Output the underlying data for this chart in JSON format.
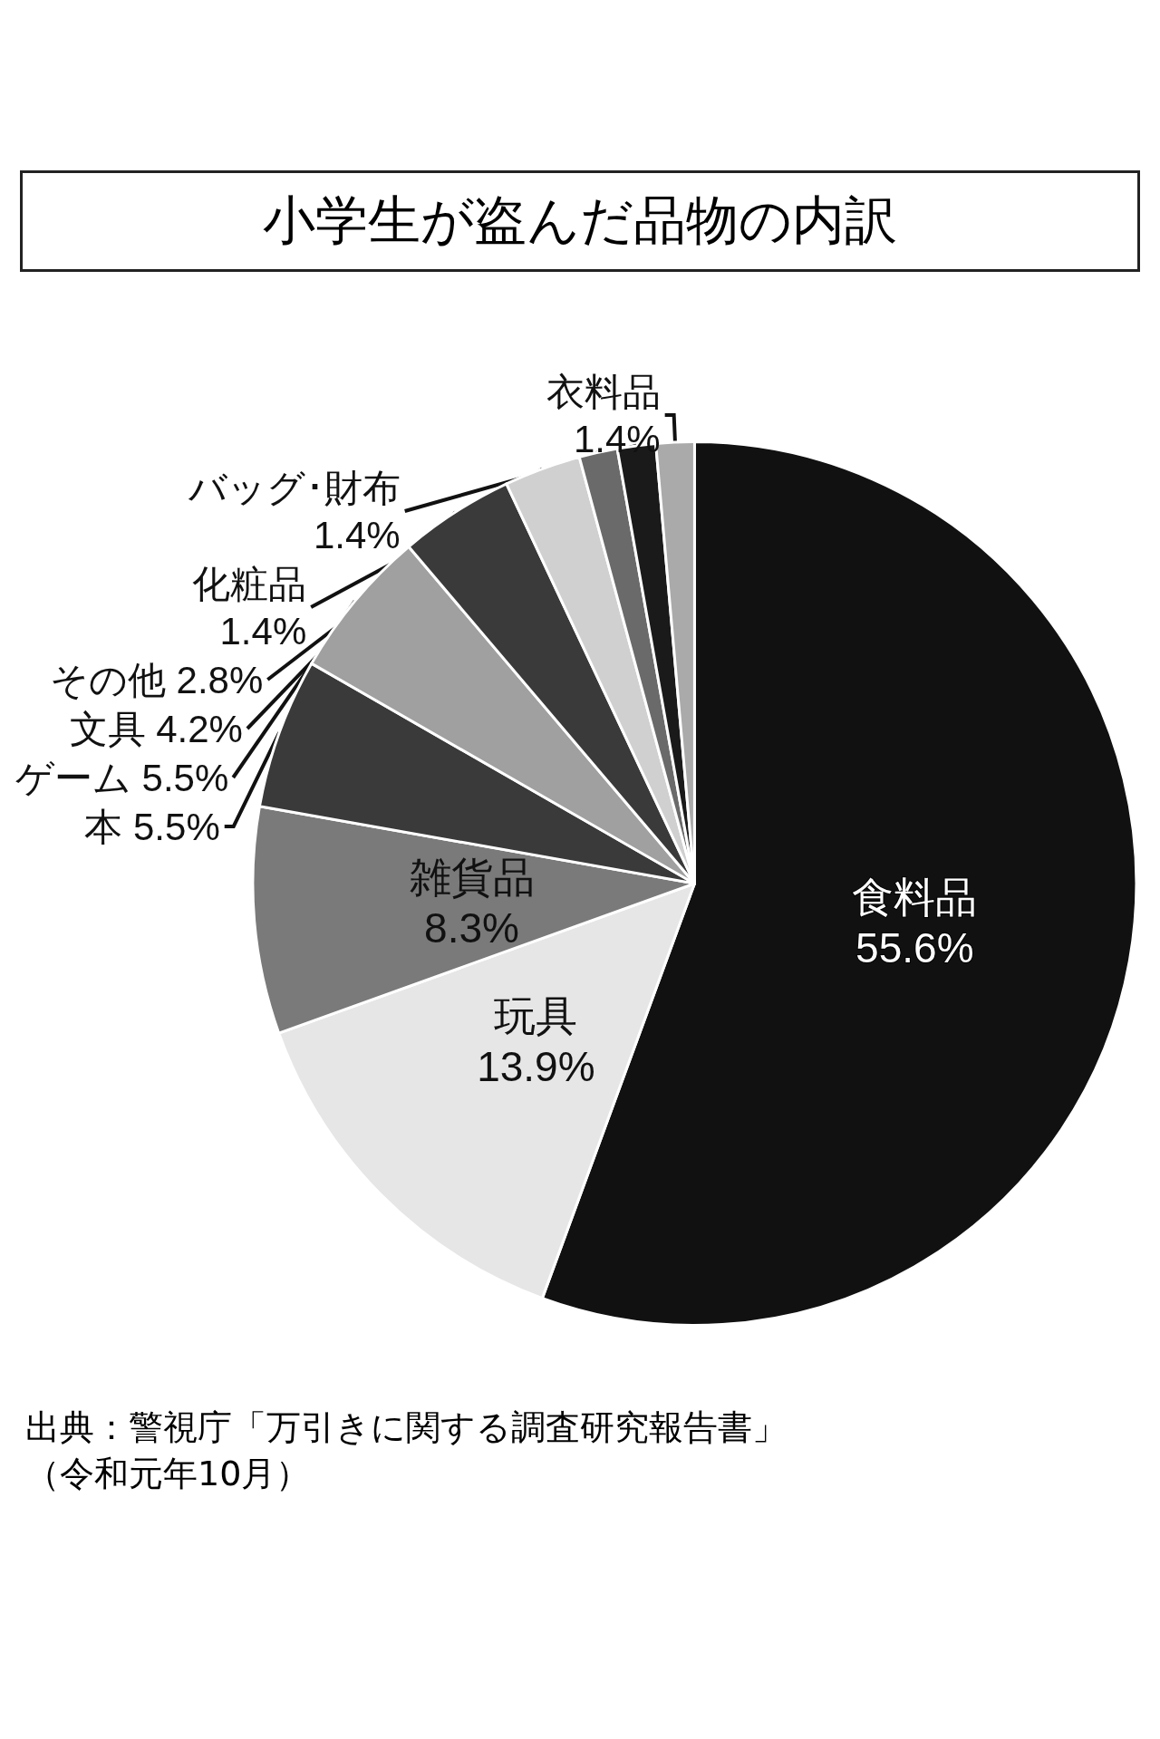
{
  "chart_data": {
    "type": "pie",
    "title": "小学生が盗んだ品物の内訳",
    "categories": [
      "食料品",
      "玩具",
      "雑貨品",
      "本",
      "ゲーム",
      "文具",
      "その他",
      "化粧品",
      "バッグ･財布",
      "衣料品"
    ],
    "values": [
      55.6,
      13.9,
      8.3,
      5.5,
      5.5,
      4.2,
      2.8,
      1.4,
      1.4,
      1.4
    ],
    "value_labels": [
      "55.6%",
      "13.9%",
      "8.3%",
      "5.5%",
      "5.5%",
      "4.2%",
      "2.8%",
      "1.4%",
      "1.4%",
      "1.4%"
    ],
    "colors": [
      "#111111",
      "#e6e6e6",
      "#7a7a7a",
      "#3a3a3a",
      "#a0a0a0",
      "#3a3a3a",
      "#d0d0d0",
      "#6a6a6a",
      "#1a1a1a",
      "#aaaaaa"
    ],
    "legend": false,
    "annotations": [
      "出典：警視庁「万引きに関する調査研究報告書」（令和元年10月）"
    ]
  }
}
